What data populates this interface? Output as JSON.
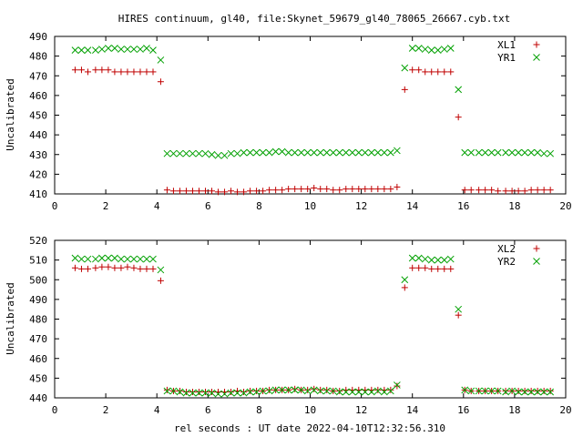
{
  "title": "HIRES continuum, gl40, file:Skynet_59679_gl40_78065_26667.cyb.txt",
  "colors": {
    "plus": "#c00000",
    "cross": "#00a000"
  },
  "chart_data": [
    {
      "type": "scatter",
      "ylabel": "Uncalibrated",
      "xlabel": "",
      "xlim": [
        0,
        20
      ],
      "ylim": [
        410,
        490
      ],
      "x_ticks": [
        0,
        2,
        4,
        6,
        8,
        10,
        12,
        14,
        16,
        18,
        20
      ],
      "y_ticks": [
        410,
        420,
        430,
        440,
        450,
        460,
        470,
        480,
        490
      ],
      "legend_position": "top-right",
      "series": [
        {
          "name": "XL1",
          "marker": "plus",
          "color": "#c00000",
          "x": [
            0.8,
            1.05,
            1.3,
            1.6,
            1.85,
            2.1,
            2.35,
            2.6,
            2.85,
            3.1,
            3.35,
            3.6,
            3.85,
            4.15,
            4.4,
            4.65,
            4.9,
            5.15,
            5.4,
            5.65,
            5.9,
            6.15,
            6.4,
            6.65,
            6.9,
            7.15,
            7.4,
            7.65,
            7.9,
            8.15,
            8.4,
            8.65,
            8.9,
            9.15,
            9.4,
            9.65,
            9.9,
            10.15,
            10.4,
            10.65,
            10.9,
            11.15,
            11.4,
            11.65,
            11.9,
            12.15,
            12.4,
            12.65,
            12.9,
            13.15,
            13.4,
            13.7,
            14.0,
            14.25,
            14.5,
            14.75,
            15.0,
            15.25,
            15.5,
            15.8,
            16.05,
            16.3,
            16.6,
            16.85,
            17.1,
            17.35,
            17.65,
            17.9,
            18.15,
            18.4,
            18.65,
            18.9,
            19.15,
            19.4
          ],
          "y": [
            473,
            473,
            472,
            473,
            473,
            473,
            472,
            472,
            472,
            472,
            472,
            472,
            472,
            467,
            412,
            411.5,
            411.5,
            411.5,
            411.5,
            411.5,
            411.5,
            411.5,
            411,
            411,
            411.5,
            411,
            411,
            411.5,
            411.5,
            411.5,
            412,
            412,
            412,
            412.5,
            412.5,
            412.5,
            412.5,
            413,
            412.5,
            412.5,
            412,
            412,
            412.5,
            412.5,
            412.5,
            412.5,
            412.5,
            412.5,
            412.5,
            412.5,
            413.5,
            463,
            473,
            473,
            472,
            472,
            472,
            472,
            472,
            449,
            412,
            412,
            412,
            412,
            412,
            411.5,
            411.5,
            411.5,
            411.5,
            411.5,
            412,
            412,
            412,
            412
          ]
        },
        {
          "name": "YR1",
          "marker": "cross",
          "color": "#00a000",
          "x": [
            0.8,
            1.05,
            1.3,
            1.6,
            1.85,
            2.1,
            2.35,
            2.6,
            2.85,
            3.1,
            3.35,
            3.6,
            3.85,
            4.15,
            4.4,
            4.65,
            4.9,
            5.15,
            5.4,
            5.65,
            5.9,
            6.15,
            6.4,
            6.65,
            6.9,
            7.15,
            7.4,
            7.65,
            7.9,
            8.15,
            8.4,
            8.65,
            8.9,
            9.15,
            9.4,
            9.65,
            9.9,
            10.15,
            10.4,
            10.65,
            10.9,
            11.15,
            11.4,
            11.65,
            11.9,
            12.15,
            12.4,
            12.65,
            12.9,
            13.15,
            13.4,
            13.7,
            14.0,
            14.25,
            14.5,
            14.75,
            15.0,
            15.25,
            15.5,
            15.8,
            16.05,
            16.3,
            16.6,
            16.85,
            17.1,
            17.35,
            17.65,
            17.9,
            18.15,
            18.4,
            18.65,
            18.9,
            19.15,
            19.4
          ],
          "y": [
            483,
            483,
            483,
            483,
            483.5,
            484,
            484,
            483.5,
            483.5,
            483.5,
            483.5,
            484,
            483,
            478,
            430.5,
            430.5,
            430.5,
            430.5,
            430.5,
            430.5,
            430.5,
            430,
            429.5,
            429.5,
            430.5,
            430.5,
            431,
            431,
            431,
            431,
            431,
            431.5,
            431.5,
            431,
            431,
            431,
            431,
            431,
            431,
            431,
            431,
            431,
            431,
            431,
            431,
            431,
            431,
            431,
            431,
            431,
            432,
            474,
            484,
            484,
            483.5,
            483,
            483,
            483.5,
            484,
            463,
            431,
            431,
            431,
            431,
            431,
            431,
            431,
            431,
            431,
            431,
            431,
            431,
            430.5,
            430.5
          ]
        }
      ]
    },
    {
      "type": "scatter",
      "ylabel": "Uncalibrated",
      "xlabel": "rel seconds : UT date 2022-04-10T12:32:56.310",
      "xlim": [
        0,
        20
      ],
      "ylim": [
        440,
        520
      ],
      "x_ticks": [
        0,
        2,
        4,
        6,
        8,
        10,
        12,
        14,
        16,
        18,
        20
      ],
      "y_ticks": [
        440,
        450,
        460,
        470,
        480,
        490,
        500,
        510,
        520
      ],
      "legend_position": "top-right",
      "series": [
        {
          "name": "XL2",
          "marker": "plus",
          "color": "#c00000",
          "x": [
            0.8,
            1.05,
            1.3,
            1.6,
            1.85,
            2.1,
            2.35,
            2.6,
            2.85,
            3.1,
            3.35,
            3.6,
            3.85,
            4.15,
            4.4,
            4.65,
            4.9,
            5.15,
            5.4,
            5.65,
            5.9,
            6.15,
            6.4,
            6.65,
            6.9,
            7.15,
            7.4,
            7.65,
            7.9,
            8.15,
            8.4,
            8.65,
            8.9,
            9.15,
            9.4,
            9.65,
            9.9,
            10.15,
            10.4,
            10.65,
            10.9,
            11.15,
            11.4,
            11.65,
            11.9,
            12.15,
            12.4,
            12.65,
            12.9,
            13.15,
            13.4,
            13.7,
            14.0,
            14.25,
            14.5,
            14.75,
            15.0,
            15.25,
            15.5,
            15.8,
            16.05,
            16.3,
            16.6,
            16.85,
            17.1,
            17.35,
            17.65,
            17.9,
            18.15,
            18.4,
            18.65,
            18.9,
            19.15,
            19.4
          ],
          "y": [
            506,
            505.5,
            505.5,
            506,
            506.5,
            506.5,
            506,
            506,
            506.5,
            506,
            505.5,
            505.5,
            505.5,
            499.5,
            444,
            443.5,
            443.5,
            443,
            443,
            443,
            443,
            443,
            443,
            443,
            443,
            443.5,
            443,
            443.5,
            443.5,
            443.5,
            444,
            444,
            444,
            444,
            444.5,
            444,
            444,
            444.5,
            444,
            444,
            443.5,
            443.5,
            444,
            444,
            444,
            444,
            444,
            444,
            444,
            444,
            446,
            496,
            506,
            506,
            506,
            505.5,
            505.5,
            505.5,
            505.5,
            482,
            444,
            443.5,
            443.5,
            443.5,
            443.5,
            443.5,
            443.5,
            443.5,
            443.5,
            443.5,
            443.5,
            443.5,
            443.5,
            443.5
          ]
        },
        {
          "name": "YR2",
          "marker": "cross",
          "color": "#00a000",
          "x": [
            0.8,
            1.05,
            1.3,
            1.6,
            1.85,
            2.1,
            2.35,
            2.6,
            2.85,
            3.1,
            3.35,
            3.6,
            3.85,
            4.15,
            4.4,
            4.65,
            4.9,
            5.15,
            5.4,
            5.65,
            5.9,
            6.15,
            6.4,
            6.65,
            6.9,
            7.15,
            7.4,
            7.65,
            7.9,
            8.15,
            8.4,
            8.65,
            8.9,
            9.15,
            9.4,
            9.65,
            9.9,
            10.15,
            10.4,
            10.65,
            10.9,
            11.15,
            11.4,
            11.65,
            11.9,
            12.15,
            12.4,
            12.65,
            12.9,
            13.15,
            13.4,
            13.7,
            14.0,
            14.25,
            14.5,
            14.75,
            15.0,
            15.25,
            15.5,
            15.8,
            16.05,
            16.3,
            16.6,
            16.85,
            17.1,
            17.35,
            17.65,
            17.9,
            18.15,
            18.4,
            18.65,
            18.9,
            19.15,
            19.4
          ],
          "y": [
            511,
            510.5,
            510.5,
            510.5,
            511,
            511,
            511,
            510.5,
            510.5,
            510.5,
            510.5,
            510.5,
            510.5,
            505,
            443.5,
            443.5,
            443,
            442.5,
            442.5,
            442.5,
            442.5,
            442.5,
            442,
            442,
            442.5,
            442.5,
            442.5,
            443,
            443,
            443.5,
            443.5,
            444,
            444,
            444,
            444,
            444,
            443.5,
            444,
            443.5,
            443.5,
            443.5,
            443,
            443,
            443,
            443,
            443,
            443,
            443.5,
            443,
            443.5,
            446.5,
            500,
            511,
            511,
            510.5,
            510,
            510,
            510,
            510.5,
            485,
            444,
            443.5,
            443.5,
            443.5,
            443.5,
            443.5,
            443,
            443.5,
            443,
            443,
            443,
            443,
            443,
            443
          ]
        }
      ]
    }
  ]
}
